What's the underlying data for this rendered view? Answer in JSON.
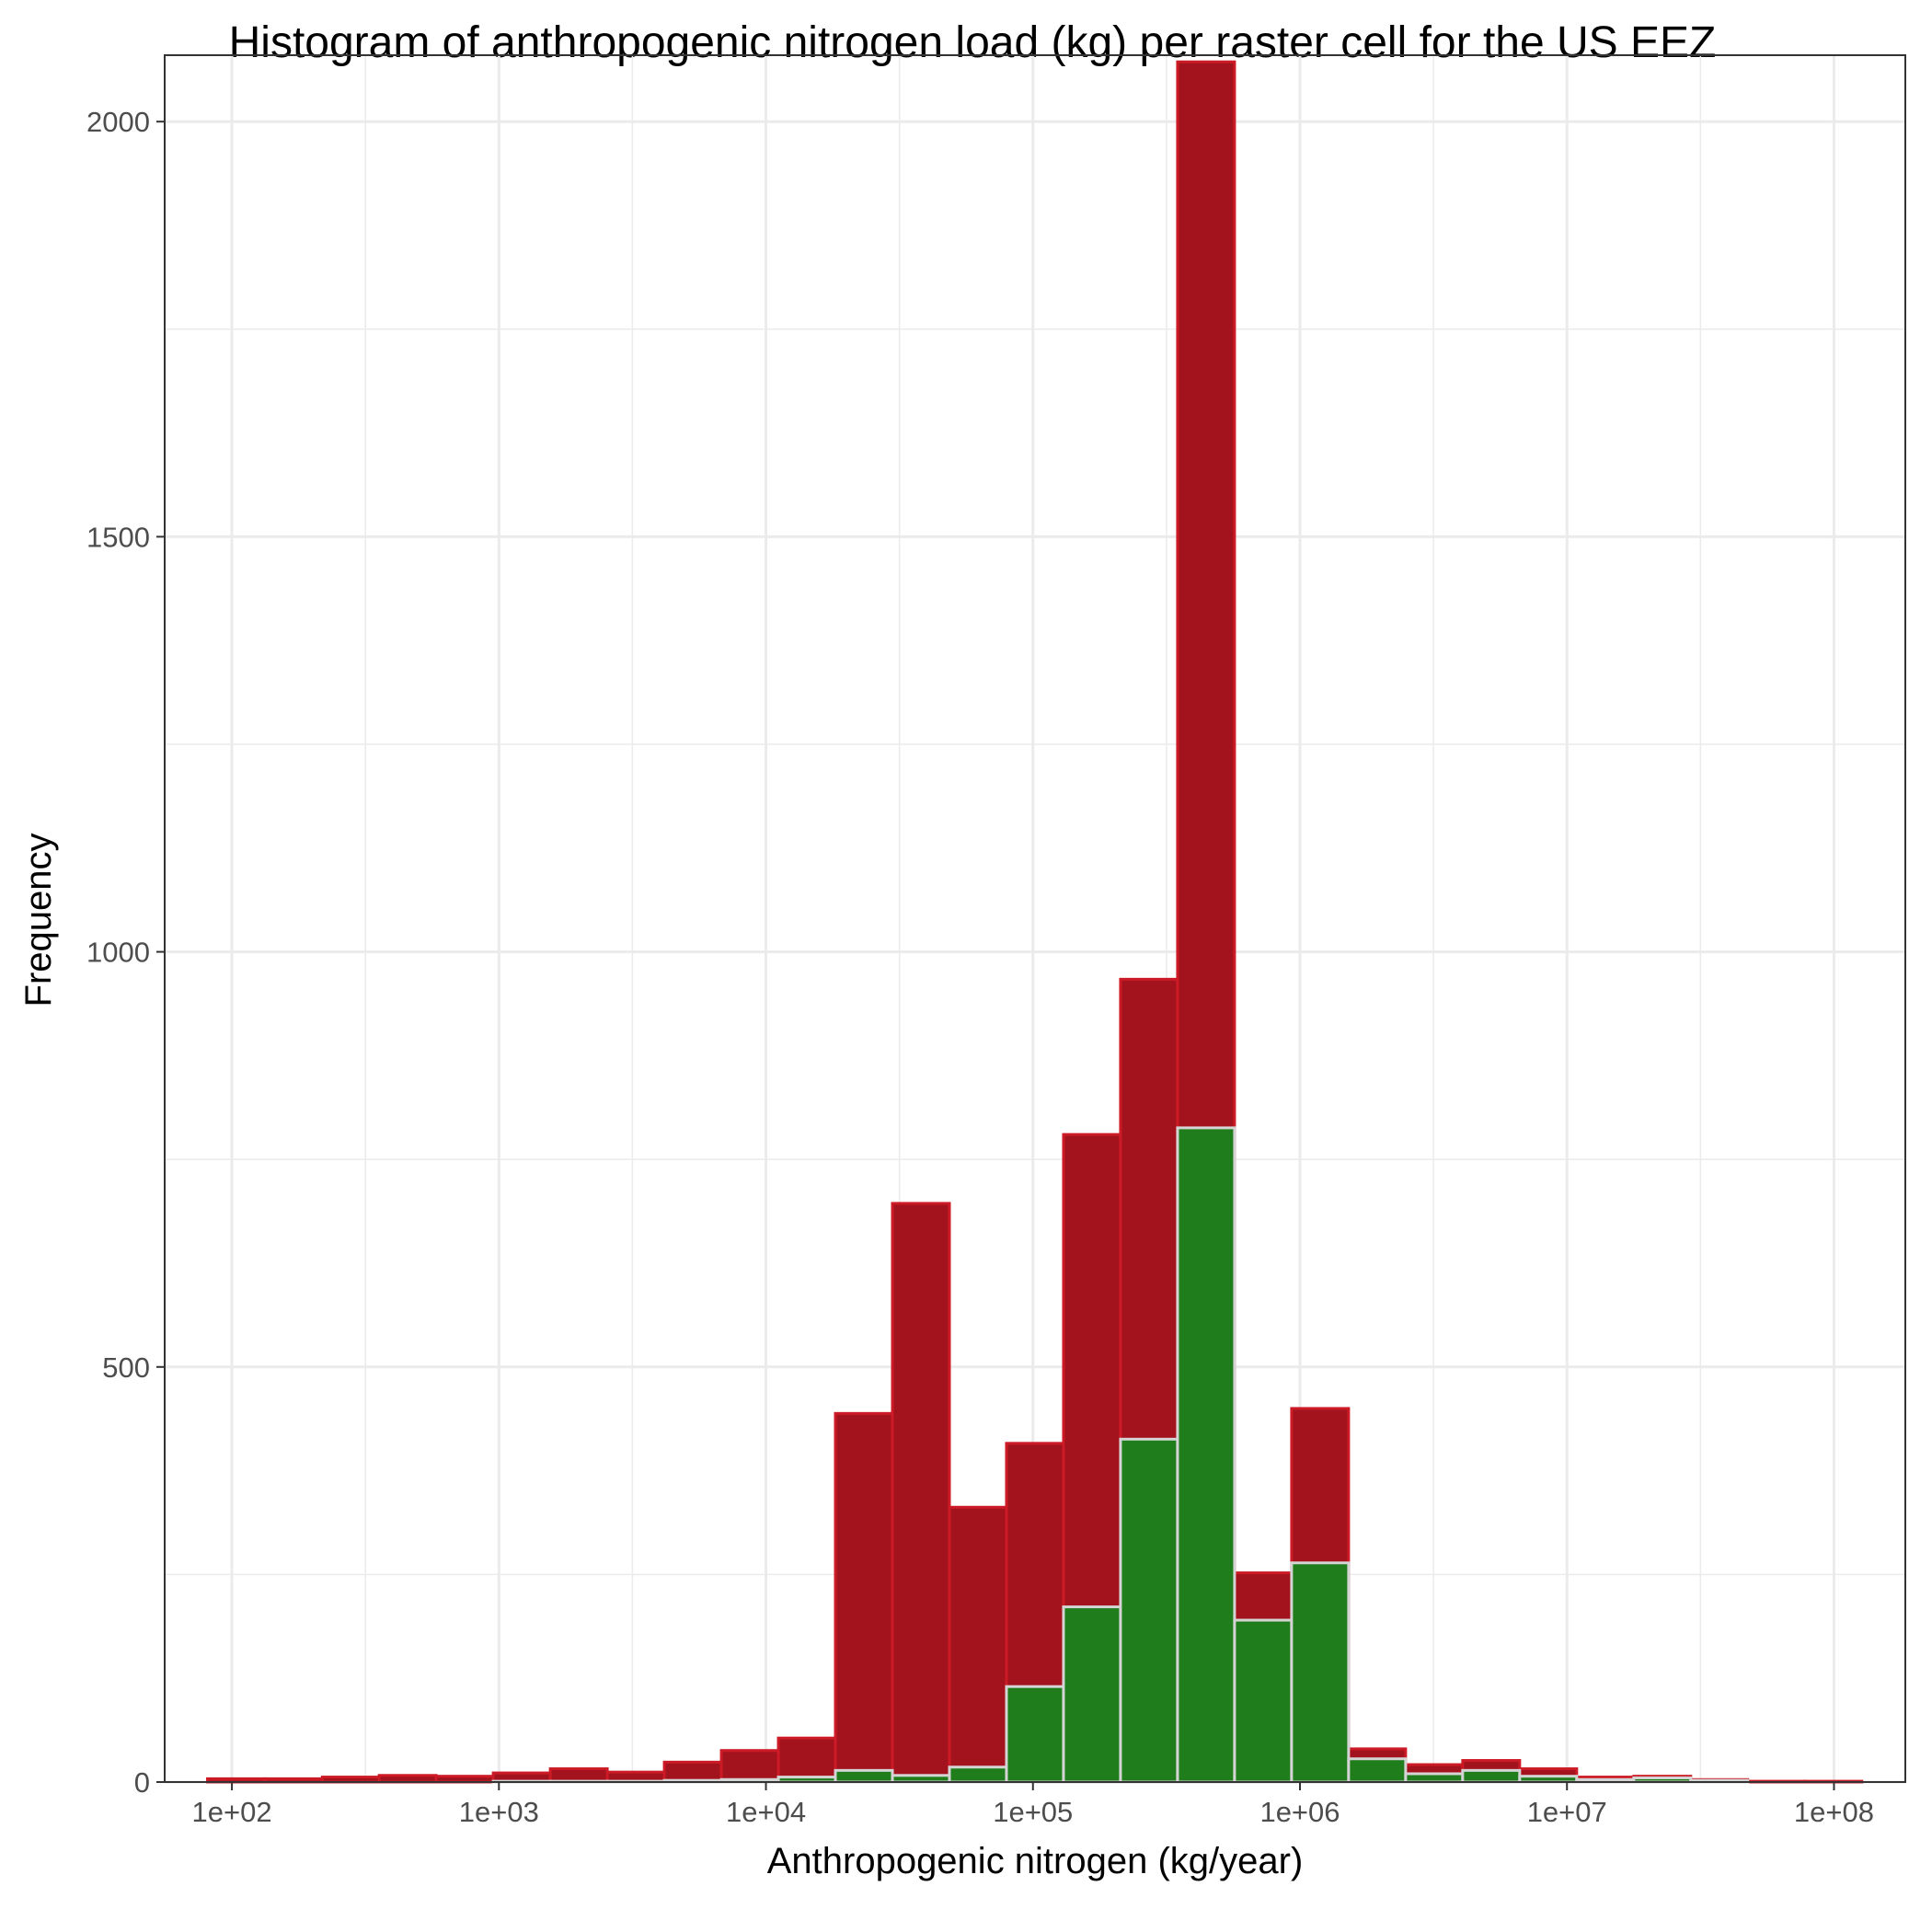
{
  "chart_data": {
    "type": "bar",
    "title": "Histogram of anthropogenic nitrogen load (kg) per raster cell for the US EEZ",
    "xlabel": "Anthropogenic nitrogen (kg/year)",
    "ylabel": "Frequency",
    "x_scale": "log10",
    "xlim": [
      56,
      185000000
    ],
    "ylim": [
      0,
      2080
    ],
    "x_ticks": [
      100,
      1000,
      10000,
      100000,
      1000000,
      10000000,
      100000000
    ],
    "x_tick_labels": [
      "1e+02",
      "1e+03",
      "1e+04",
      "1e+05",
      "1e+06",
      "1e+07",
      "1e+08"
    ],
    "y_ticks": [
      0,
      500,
      1000,
      1500,
      2000
    ],
    "y_tick_labels": [
      "0",
      "500",
      "1000",
      "1500",
      "2000"
    ],
    "grid": true,
    "bin_edges": [
      81,
      133,
      218,
      356,
      582,
      952,
      1557,
      2546,
      4163,
      6807,
      11131,
      18201,
      29762,
      48666,
      79579,
      130126,
      212780,
      347936,
      568940,
      930320,
      1521241,
      2487488,
      4067496,
      6651069,
      10875683,
      17783809,
      29079860,
      47550872,
      77754280,
      127143200
    ],
    "series": [
      {
        "fill": "#a3131d",
        "stroke": "#cc1b26",
        "values": [
          4,
          4,
          6,
          8,
          7,
          11,
          16,
          12,
          24,
          38,
          53,
          444,
          697,
          331,
          408,
          780,
          967,
          2072,
          252,
          450,
          40,
          21,
          26,
          16,
          6,
          7,
          3,
          1,
          1
        ]
      },
      {
        "fill": "#1f7d1c",
        "stroke": "#d4d4d4",
        "values": [
          0,
          0,
          0,
          0,
          0,
          1,
          1,
          1,
          2,
          3,
          6,
          14,
          8,
          18,
          115,
          211,
          413,
          788,
          195,
          264,
          28,
          10,
          14,
          7,
          3,
          5,
          2,
          0,
          0
        ]
      }
    ],
    "colors": {
      "series_1": "#a3131d",
      "series_2": "#1f7d1c",
      "panel_border": "#333333",
      "grid": "#ebebeb",
      "text": "#000000",
      "tick_text": "#4d4d4d"
    }
  }
}
